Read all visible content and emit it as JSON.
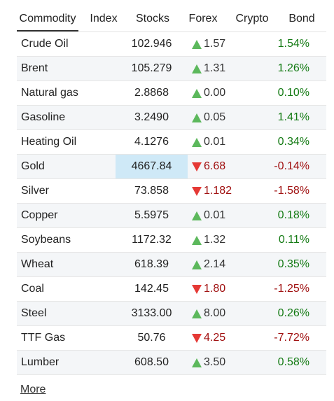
{
  "tabs": [
    "Commodity",
    "Index",
    "Stocks",
    "Forex",
    "Crypto",
    "Bond"
  ],
  "rows": [
    [
      "Crude Oil",
      "102.946",
      "1.57",
      "1.54%"
    ],
    [
      "Brent",
      "105.279",
      "1.31",
      "1.26%"
    ],
    [
      "Natural gas",
      "2.8868",
      "0.00",
      "0.10%"
    ],
    [
      "Gasoline",
      "3.2490",
      "0.05",
      "1.41%"
    ],
    [
      "Heating Oil",
      "4.1276",
      "0.01",
      "0.34%"
    ],
    [
      "Gold",
      "4667.84",
      "6.68",
      "-0.14%"
    ],
    [
      "Silver",
      "73.858",
      "1.182",
      "-1.58%"
    ],
    [
      "Copper",
      "5.5975",
      "0.01",
      "0.18%"
    ],
    [
      "Soybeans",
      "1172.32",
      "1.32",
      "0.11%"
    ],
    [
      "Wheat",
      "618.39",
      "2.14",
      "0.35%"
    ],
    [
      "Coal",
      "142.45",
      "1.80",
      "-1.25%"
    ],
    [
      "Steel",
      "3133.00",
      "8.00",
      "0.26%"
    ],
    [
      "TTF Gas",
      "50.76",
      "4.25",
      "-7.72%"
    ],
    [
      "Lumber",
      "608.50",
      "3.50",
      "0.58%"
    ]
  ],
  "more": "More"
}
